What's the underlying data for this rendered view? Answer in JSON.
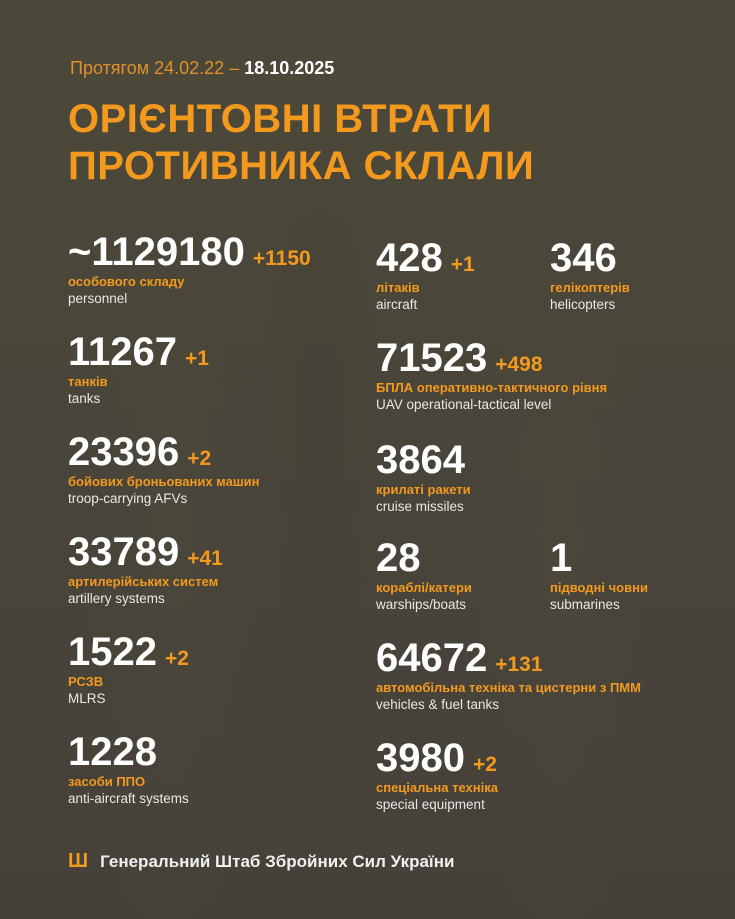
{
  "header": {
    "period_prefix": "Протягом 24.02.22 –",
    "period_end": "18.10.2025",
    "title_line1": "ОРІЄНТОВНІ ВТРАТИ",
    "title_line2": "ПРОТИВНИКА СКЛАЛИ"
  },
  "items": [
    {
      "value": "~1129180",
      "delta": "+1150",
      "ua": "особового складу",
      "en": "personnel"
    },
    {
      "value": "11267",
      "delta": "+1",
      "ua": "танків",
      "en": "tanks"
    },
    {
      "value": "23396",
      "delta": "+2",
      "ua": "бойових броньованих машин",
      "en": "troop-carrying AFVs"
    },
    {
      "value": "33789",
      "delta": "+41",
      "ua": "артилерійських систем",
      "en": "artillery systems"
    },
    {
      "value": "1522",
      "delta": "+2",
      "ua": "РСЗВ",
      "en": "MLRS"
    },
    {
      "value": "1228",
      "delta": "",
      "ua": "засоби ППО",
      "en": "anti-aircraft systems"
    },
    {
      "value": "428",
      "delta": "+1",
      "ua": "літаків",
      "en": "aircraft"
    },
    {
      "value": "346",
      "delta": "",
      "ua": "гелікоптерів",
      "en": "helicopters"
    },
    {
      "value": "71523",
      "delta": "+498",
      "ua": "БПЛА оперативно-тактичного рівня",
      "en": "UAV operational-tactical level"
    },
    {
      "value": "3864",
      "delta": "",
      "ua": "крилаті ракети",
      "en": "cruise missiles"
    },
    {
      "value": "28",
      "delta": "",
      "ua": "кораблі/катери",
      "en": "warships/boats"
    },
    {
      "value": "1",
      "delta": "",
      "ua": "підводні човни",
      "en": "submarines"
    },
    {
      "value": "64672",
      "delta": "+131",
      "ua": "автомобільна техніка та цистерни з ПММ",
      "en": "vehicles & fuel tanks"
    },
    {
      "value": "3980",
      "delta": "+2",
      "ua": "спеціальна техніка",
      "en": "special equipment"
    }
  ],
  "footer": {
    "icon": "trident-icon",
    "text": "Генеральний Штаб Збройних Сил України"
  },
  "colors": {
    "accent": "#f39a1e",
    "background": "#48443a"
  }
}
